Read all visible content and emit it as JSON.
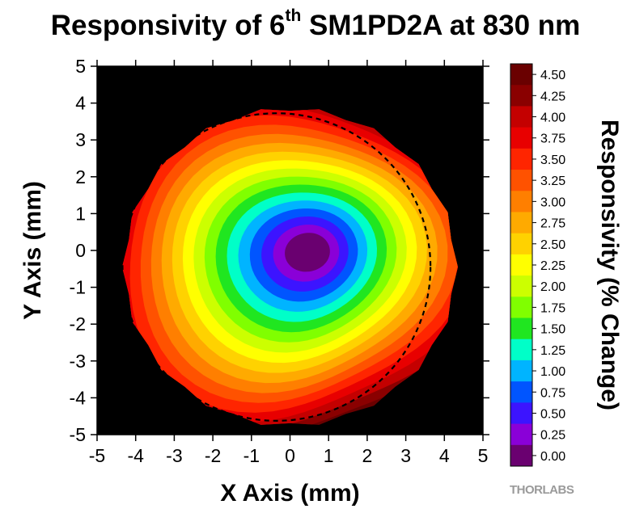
{
  "chart_data": {
    "type": "heatmap",
    "title": {
      "prefix": "Responsivity of 6",
      "superscript": "th",
      "suffix": " SM1PD2A at 830 nm"
    },
    "xlabel": "X Axis (mm)",
    "ylabel": "Y Axis (mm)",
    "xlim": [
      -5,
      5
    ],
    "ylim": [
      -5,
      5
    ],
    "xticks": [
      "-5",
      "-4",
      "-3",
      "-2",
      "-1",
      "0",
      "1",
      "2",
      "3",
      "4",
      "5"
    ],
    "yticks": [
      "5",
      "4",
      "3",
      "2",
      "1",
      "0",
      "-1",
      "-2",
      "-3",
      "-4",
      "-5"
    ],
    "background_color": "#000000",
    "colorbar": {
      "label": "Responsivity (% Change)",
      "levels": [
        {
          "label": "4.50",
          "color": "#6a0000"
        },
        {
          "label": "4.25",
          "color": "#8a0000"
        },
        {
          "label": "4.00",
          "color": "#c40000"
        },
        {
          "label": "3.75",
          "color": "#e80000"
        },
        {
          "label": "3.50",
          "color": "#ff2500"
        },
        {
          "label": "3.25",
          "color": "#ff5200"
        },
        {
          "label": "3.00",
          "color": "#ff7f00"
        },
        {
          "label": "2.75",
          "color": "#ffaa00"
        },
        {
          "label": "2.50",
          "color": "#ffd200"
        },
        {
          "label": "2.25",
          "color": "#ffff00"
        },
        {
          "label": "2.00",
          "color": "#ccff00"
        },
        {
          "label": "1.75",
          "color": "#80ff00"
        },
        {
          "label": "1.50",
          "color": "#20e620"
        },
        {
          "label": "1.25",
          "color": "#00ffc8"
        },
        {
          "label": "1.00",
          "color": "#00b4ff"
        },
        {
          "label": "0.75",
          "color": "#0055ff"
        },
        {
          "label": "0.50",
          "color": "#3c14ff"
        },
        {
          "label": "0.25",
          "color": "#8a00d8"
        },
        {
          "label": "0.00",
          "color": "#6a0070"
        }
      ]
    },
    "field": {
      "center_x": 0.4,
      "center_y": -0.3,
      "aperture_radius_mm": 4.35,
      "reference_circle": {
        "center_x": -0.35,
        "center_y": -0.45,
        "radius_mm": 4.08
      }
    }
  },
  "brand": "THORLABS"
}
